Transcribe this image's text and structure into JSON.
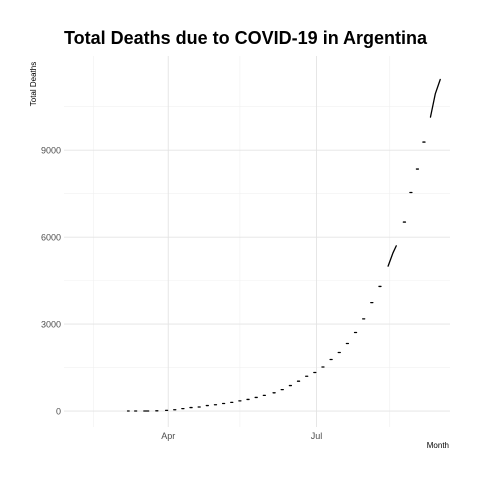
{
  "chart_data": {
    "type": "line",
    "title": "Total Deaths due to COVID-19 in Argentina",
    "xlabel": "Month",
    "ylabel": "Total Deaths",
    "x_ticks": [
      {
        "label": "Apr",
        "date": "2020-04-01"
      },
      {
        "label": "Jul",
        "date": "2020-07-01"
      }
    ],
    "x_minor_ticks": [
      "2020-02-15",
      "2020-05-15",
      "2020-08-15"
    ],
    "xlim": [
      "2020-01-28",
      "2020-09-21"
    ],
    "y_ticks": [
      0,
      3000,
      6000,
      9000
    ],
    "y_minor_ticks": [
      1500,
      4500,
      7500,
      10500
    ],
    "ylim": [
      -550,
      12250
    ],
    "grid": true,
    "legend": "none",
    "series": [
      {
        "color": "#000000",
        "points": [
          [
            "2020-03-07",
            1
          ],
          [
            "2020-03-08",
            1
          ],
          [
            "2020-03-12",
            2
          ],
          [
            "2020-03-17",
            2
          ],
          [
            "2020-03-20",
            3
          ],
          [
            "2020-03-25",
            8
          ],
          [
            "2020-03-31",
            24
          ],
          [
            "2020-04-05",
            44
          ],
          [
            "2020-04-10",
            83
          ],
          [
            "2020-04-15",
            120
          ],
          [
            "2020-04-20",
            140
          ],
          [
            "2020-04-25",
            190
          ],
          [
            "2020-04-30",
            218
          ],
          [
            "2020-05-05",
            260
          ],
          [
            "2020-05-10",
            300
          ],
          [
            "2020-05-15",
            350
          ],
          [
            "2020-05-20",
            400
          ],
          [
            "2020-05-25",
            470
          ],
          [
            "2020-05-30",
            540
          ],
          [
            "2020-06-05",
            630
          ],
          [
            "2020-06-10",
            740
          ],
          [
            "2020-06-15",
            880
          ],
          [
            "2020-06-20",
            1030
          ],
          [
            "2020-06-25",
            1200
          ],
          [
            "2020-06-30",
            1330
          ],
          [
            "2020-07-05",
            1520
          ],
          [
            "2020-07-10",
            1780
          ],
          [
            "2020-07-15",
            2020
          ],
          [
            "2020-07-20",
            2330
          ],
          [
            "2020-07-25",
            2710
          ],
          [
            "2020-07-30",
            3180
          ],
          [
            "2020-08-04",
            3740
          ],
          [
            "2020-08-09",
            4300
          ],
          [
            "2020-08-14",
            5000
          ],
          [
            "2020-08-17",
            5460
          ],
          [
            "2020-08-19",
            5700
          ],
          [
            "2020-08-24",
            6520
          ],
          [
            "2020-08-28",
            7540
          ],
          [
            "2020-09-01",
            8350
          ],
          [
            "2020-09-05",
            9280
          ],
          [
            "2020-09-09",
            10140
          ],
          [
            "2020-09-12",
            10950
          ],
          [
            "2020-09-15",
            11440
          ]
        ]
      }
    ]
  }
}
